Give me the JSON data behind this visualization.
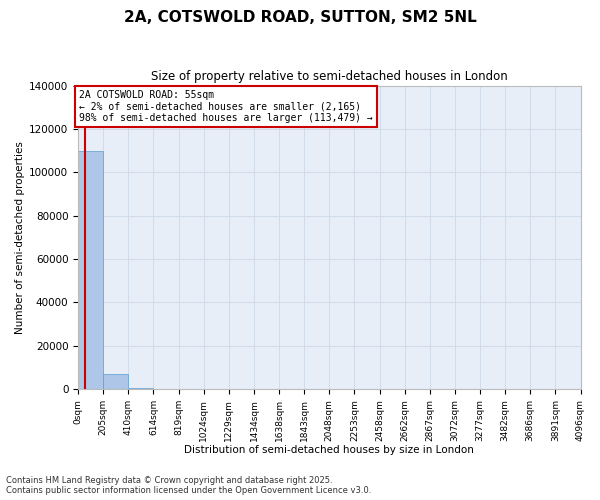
{
  "title": "2A, COTSWOLD ROAD, SUTTON, SM2 5NL",
  "subtitle": "Size of property relative to semi-detached houses in London",
  "xlabel": "Distribution of semi-detached houses by size in London",
  "ylabel": "Number of semi-detached properties",
  "property_size": 55,
  "annotation_text": "2A COTSWOLD ROAD: 55sqm\n← 2% of semi-detached houses are smaller (2,165)\n98% of semi-detached houses are larger (113,479) →",
  "bar_color": "#aec6e8",
  "bar_edge_color": "#5a9fd4",
  "redline_color": "#cc0000",
  "annotation_box_color": "#cc0000",
  "background_color": "#ffffff",
  "grid_color": "#d0dcea",
  "bin_edges": [
    0,
    205,
    410,
    614,
    819,
    1024,
    1229,
    1434,
    1638,
    1843,
    2048,
    2253,
    2458,
    2662,
    2867,
    3072,
    3277,
    3482,
    3686,
    3891,
    4096
  ],
  "bin_labels": [
    "0sqm",
    "205sqm",
    "410sqm",
    "614sqm",
    "819sqm",
    "1024sqm",
    "1229sqm",
    "1434sqm",
    "1638sqm",
    "1843sqm",
    "2048sqm",
    "2253sqm",
    "2458sqm",
    "2662sqm",
    "2867sqm",
    "3072sqm",
    "3277sqm",
    "3482sqm",
    "3686sqm",
    "3891sqm",
    "4096sqm"
  ],
  "bar_heights": [
    110000,
    7000,
    600,
    100,
    30,
    10,
    5,
    3,
    2,
    1,
    1,
    0,
    0,
    0,
    0,
    0,
    0,
    0,
    0,
    0
  ],
  "ylim": [
    0,
    140000
  ],
  "yticks": [
    0,
    20000,
    40000,
    60000,
    80000,
    100000,
    120000,
    140000
  ],
  "footnote1": "Contains HM Land Registry data © Crown copyright and database right 2025.",
  "footnote2": "Contains public sector information licensed under the Open Government Licence v3.0."
}
